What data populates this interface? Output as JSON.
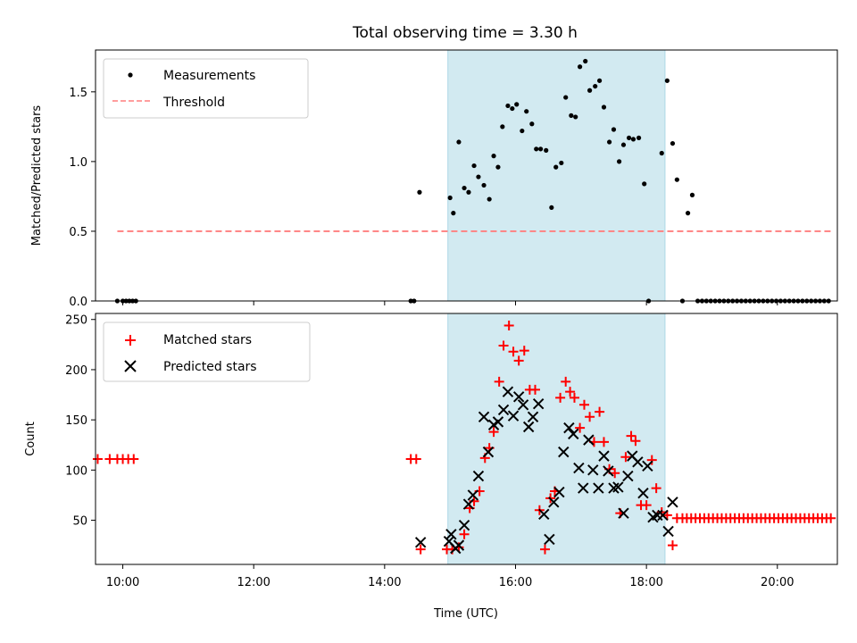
{
  "colors": {
    "shade": "#add8e6",
    "measure": "#000000",
    "threshold": "#ff7f7f",
    "matched": "#ff0000",
    "predicted": "#000000"
  },
  "chart_data": [
    {
      "type": "scatter",
      "title": "Total observing time = 3.30 h",
      "xlabel": "",
      "ylabel": "Matched/Predicted stars",
      "xlim": [
        "09:35",
        "20:55"
      ],
      "ylim": [
        0,
        1.8
      ],
      "yticks": [
        "0.0",
        "0.5",
        "1.0",
        "1.5"
      ],
      "shaded_span": [
        "14:58",
        "18:17"
      ],
      "threshold": {
        "name": "Threshold",
        "value": 0.5,
        "x": [
          "09:55",
          "20:50"
        ]
      },
      "legend": {
        "placement": "top-left",
        "entries": [
          "Measurements",
          "Threshold"
        ]
      },
      "series": [
        {
          "name": "Measurements",
          "points": [
            [
              "09:55",
              0
            ],
            [
              "10:00",
              0
            ],
            [
              "10:03",
              0
            ],
            [
              "10:06",
              0
            ],
            [
              "10:09",
              0
            ],
            [
              "10:12",
              0
            ],
            [
              "14:24",
              0
            ],
            [
              "14:27",
              0
            ],
            [
              "14:32",
              0.78
            ],
            [
              "15:00",
              0.74
            ],
            [
              "15:03",
              0.63
            ],
            [
              "15:08",
              1.14
            ],
            [
              "15:13",
              0.81
            ],
            [
              "15:17",
              0.78
            ],
            [
              "15:22",
              0.97
            ],
            [
              "15:26",
              0.89
            ],
            [
              "15:31",
              0.83
            ],
            [
              "15:36",
              0.73
            ],
            [
              "15:40",
              1.04
            ],
            [
              "15:44",
              0.96
            ],
            [
              "15:48",
              1.25
            ],
            [
              "15:53",
              1.4
            ],
            [
              "15:57",
              1.38
            ],
            [
              "16:01",
              1.41
            ],
            [
              "16:06",
              1.22
            ],
            [
              "16:10",
              1.36
            ],
            [
              "16:15",
              1.27
            ],
            [
              "16:19",
              1.09
            ],
            [
              "16:23",
              1.09
            ],
            [
              "16:28",
              1.08
            ],
            [
              "16:33",
              0.67
            ],
            [
              "16:37",
              0.96
            ],
            [
              "16:42",
              0.99
            ],
            [
              "16:46",
              1.46
            ],
            [
              "16:51",
              1.33
            ],
            [
              "16:55",
              1.32
            ],
            [
              "16:59",
              1.68
            ],
            [
              "17:04",
              1.72
            ],
            [
              "17:08",
              1.51
            ],
            [
              "17:13",
              1.54
            ],
            [
              "17:17",
              1.58
            ],
            [
              "17:21",
              1.39
            ],
            [
              "17:26",
              1.14
            ],
            [
              "17:30",
              1.23
            ],
            [
              "17:35",
              1.0
            ],
            [
              "17:39",
              1.12
            ],
            [
              "17:44",
              1.17
            ],
            [
              "17:48",
              1.16
            ],
            [
              "17:53",
              1.17
            ],
            [
              "17:58",
              0.84
            ],
            [
              "18:02",
              0
            ],
            [
              "18:14",
              1.06
            ],
            [
              "18:19",
              1.58
            ],
            [
              "18:24",
              1.13
            ],
            [
              "18:28",
              0.87
            ],
            [
              "18:33",
              0
            ],
            [
              "18:38",
              0.63
            ],
            [
              "18:42",
              0.76
            ],
            [
              "18:47",
              0
            ],
            [
              "18:51",
              0
            ],
            [
              "18:55",
              0
            ],
            [
              "18:59",
              0
            ],
            [
              "19:03",
              0
            ],
            [
              "19:07",
              0
            ],
            [
              "19:11",
              0
            ],
            [
              "19:15",
              0
            ],
            [
              "19:19",
              0
            ],
            [
              "19:23",
              0
            ],
            [
              "19:27",
              0
            ],
            [
              "19:31",
              0
            ],
            [
              "19:35",
              0
            ],
            [
              "19:39",
              0
            ],
            [
              "19:43",
              0
            ],
            [
              "19:47",
              0
            ],
            [
              "19:51",
              0
            ],
            [
              "19:55",
              0
            ],
            [
              "19:59",
              0
            ],
            [
              "20:03",
              0
            ],
            [
              "20:07",
              0
            ],
            [
              "20:11",
              0
            ],
            [
              "20:15",
              0
            ],
            [
              "20:19",
              0
            ],
            [
              "20:23",
              0
            ],
            [
              "20:27",
              0
            ],
            [
              "20:31",
              0
            ],
            [
              "20:35",
              0
            ],
            [
              "20:39",
              0
            ],
            [
              "20:43",
              0
            ],
            [
              "20:47",
              0
            ]
          ]
        }
      ]
    },
    {
      "type": "scatter",
      "xlabel": "Time (UTC)",
      "ylabel": "Count",
      "xlim": [
        "09:35",
        "20:55"
      ],
      "ylim": [
        6,
        256
      ],
      "xticks": [
        "10:00",
        "12:00",
        "14:00",
        "16:00",
        "18:00",
        "20:00"
      ],
      "yticks": [
        "50",
        "100",
        "150",
        "200",
        "250"
      ],
      "shaded_span": [
        "14:58",
        "18:17"
      ],
      "legend": {
        "placement": "top-left",
        "entries": [
          "Matched stars",
          "Predicted stars"
        ]
      },
      "series": [
        {
          "name": "Matched stars",
          "marker": "plus",
          "points": [
            [
              "09:37",
              111
            ],
            [
              "09:48",
              111
            ],
            [
              "09:55",
              111
            ],
            [
              "10:00",
              111
            ],
            [
              "10:05",
              111
            ],
            [
              "10:10",
              111
            ],
            [
              "14:24",
              111
            ],
            [
              "14:29",
              111
            ],
            [
              "14:33",
              21
            ],
            [
              "14:57",
              21
            ],
            [
              "15:02",
              21
            ],
            [
              "15:08",
              23
            ],
            [
              "15:13",
              36
            ],
            [
              "15:18",
              62
            ],
            [
              "15:22",
              69
            ],
            [
              "15:27",
              79
            ],
            [
              "15:32",
              112
            ],
            [
              "15:36",
              122
            ],
            [
              "15:40",
              138
            ],
            [
              "15:45",
              188
            ],
            [
              "15:49",
              224
            ],
            [
              "15:54",
              244
            ],
            [
              "15:58",
              218
            ],
            [
              "16:03",
              209
            ],
            [
              "16:08",
              219
            ],
            [
              "16:13",
              180
            ],
            [
              "16:18",
              180
            ],
            [
              "16:22",
              60
            ],
            [
              "16:27",
              21
            ],
            [
              "16:32",
              72
            ],
            [
              "16:36",
              79
            ],
            [
              "16:41",
              172
            ],
            [
              "16:46",
              188
            ],
            [
              "16:50",
              178
            ],
            [
              "16:54",
              172
            ],
            [
              "16:59",
              142
            ],
            [
              "17:03",
              165
            ],
            [
              "17:08",
              153
            ],
            [
              "17:12",
              128
            ],
            [
              "17:17",
              158
            ],
            [
              "17:21",
              128
            ],
            [
              "17:26",
              101
            ],
            [
              "17:31",
              97
            ],
            [
              "17:36",
              57
            ],
            [
              "17:41",
              113
            ],
            [
              "17:46",
              134
            ],
            [
              "17:50",
              129
            ],
            [
              "17:55",
              65
            ],
            [
              "18:00",
              65
            ],
            [
              "18:05",
              110
            ],
            [
              "18:09",
              82
            ],
            [
              "18:14",
              58
            ],
            [
              "18:19",
              55
            ],
            [
              "18:24",
              25
            ],
            [
              "18:28",
              52
            ],
            [
              "18:33",
              52
            ],
            [
              "18:37",
              52
            ],
            [
              "18:41",
              52
            ],
            [
              "18:45",
              52
            ],
            [
              "18:49",
              52
            ],
            [
              "18:53",
              52
            ],
            [
              "18:57",
              52
            ],
            [
              "19:01",
              52
            ],
            [
              "19:05",
              52
            ],
            [
              "19:09",
              52
            ],
            [
              "19:13",
              52
            ],
            [
              "19:17",
              52
            ],
            [
              "19:21",
              52
            ],
            [
              "19:25",
              52
            ],
            [
              "19:29",
              52
            ],
            [
              "19:33",
              52
            ],
            [
              "19:37",
              52
            ],
            [
              "19:41",
              52
            ],
            [
              "19:45",
              52
            ],
            [
              "19:49",
              52
            ],
            [
              "19:53",
              52
            ],
            [
              "19:57",
              52
            ],
            [
              "20:01",
              52
            ],
            [
              "20:05",
              52
            ],
            [
              "20:09",
              52
            ],
            [
              "20:13",
              52
            ],
            [
              "20:17",
              52
            ],
            [
              "20:21",
              52
            ],
            [
              "20:25",
              52
            ],
            [
              "20:29",
              52
            ],
            [
              "20:33",
              52
            ],
            [
              "20:37",
              52
            ],
            [
              "20:41",
              52
            ],
            [
              "20:45",
              52
            ],
            [
              "20:49",
              52
            ]
          ]
        },
        {
          "name": "Predicted stars",
          "marker": "x",
          "points": [
            [
              "14:33",
              28
            ],
            [
              "14:59",
              29
            ],
            [
              "15:01",
              36
            ],
            [
              "15:05",
              22
            ],
            [
              "15:08",
              25
            ],
            [
              "15:13",
              45
            ],
            [
              "15:17",
              66
            ],
            [
              "15:21",
              75
            ],
            [
              "15:26",
              94
            ],
            [
              "15:31",
              153
            ],
            [
              "15:35",
              118
            ],
            [
              "15:40",
              145
            ],
            [
              "15:44",
              148
            ],
            [
              "15:49",
              160
            ],
            [
              "15:53",
              178
            ],
            [
              "15:58",
              154
            ],
            [
              "16:03",
              173
            ],
            [
              "16:07",
              165
            ],
            [
              "16:12",
              143
            ],
            [
              "16:16",
              153
            ],
            [
              "16:21",
              166
            ],
            [
              "16:26",
              56
            ],
            [
              "16:31",
              31
            ],
            [
              "16:35",
              68
            ],
            [
              "16:40",
              78
            ],
            [
              "16:44",
              118
            ],
            [
              "16:49",
              142
            ],
            [
              "16:53",
              136
            ],
            [
              "16:58",
              102
            ],
            [
              "17:02",
              82
            ],
            [
              "17:07",
              130
            ],
            [
              "17:11",
              100
            ],
            [
              "17:16",
              82
            ],
            [
              "17:21",
              114
            ],
            [
              "17:25",
              99
            ],
            [
              "17:30",
              82
            ],
            [
              "17:34",
              83
            ],
            [
              "17:39",
              57
            ],
            [
              "17:43",
              94
            ],
            [
              "17:47",
              114
            ],
            [
              "17:52",
              108
            ],
            [
              "17:57",
              77
            ],
            [
              "18:01",
              104
            ],
            [
              "18:06",
              53
            ],
            [
              "18:10",
              55
            ],
            [
              "18:15",
              55
            ],
            [
              "18:20",
              39
            ],
            [
              "18:24",
              68
            ]
          ]
        }
      ]
    }
  ]
}
